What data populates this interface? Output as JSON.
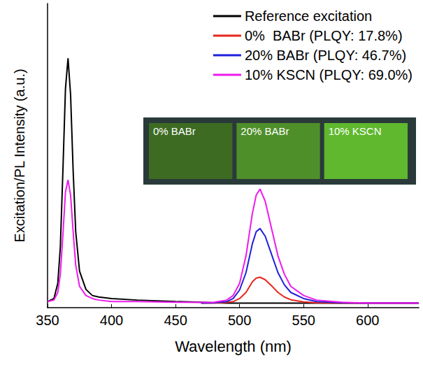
{
  "chart_data": {
    "type": "line",
    "xlabel": "Wavelength (nm)",
    "ylabel": "Excitation/PL Intensity (a.u.)",
    "x": [
      350,
      355,
      358,
      360,
      362,
      364,
      366,
      368,
      370,
      372,
      375,
      380,
      385,
      390,
      400,
      420,
      450,
      470,
      480,
      490,
      495,
      500,
      505,
      510,
      513,
      516,
      520,
      525,
      530,
      535,
      540,
      550,
      560,
      580,
      600,
      620,
      640
    ],
    "series": [
      {
        "name": "Reference excitation",
        "color": "#000000",
        "values": [
          0.02,
          0.03,
          0.08,
          0.2,
          0.45,
          0.72,
          0.82,
          0.7,
          0.45,
          0.25,
          0.12,
          0.06,
          0.04,
          0.035,
          0.03,
          0.025,
          0.02,
          0.018,
          0.016,
          0.015,
          0.015,
          0.015,
          0.015,
          0.015,
          0.015,
          0.015,
          0.015,
          0.015,
          0.015,
          0.015,
          0.015,
          0.015,
          0.015,
          0.015,
          0.015,
          0.015,
          0.015
        ]
      },
      {
        "name": "0%  BABr (PLQY: 17.8%)",
        "color": "#e8261c",
        "values": [
          null,
          null,
          null,
          null,
          null,
          null,
          null,
          null,
          null,
          null,
          null,
          null,
          null,
          null,
          null,
          null,
          null,
          0.015,
          0.015,
          0.017,
          0.02,
          0.03,
          0.05,
          0.085,
          0.097,
          0.1,
          0.092,
          0.072,
          0.05,
          0.035,
          0.026,
          0.019,
          0.016,
          0.015,
          0.015,
          0.015,
          0.015
        ]
      },
      {
        "name": "20% BABr (PLQY: 46.7%)",
        "color": "#1f1fdc",
        "values": [
          null,
          null,
          null,
          null,
          null,
          null,
          null,
          null,
          null,
          null,
          null,
          null,
          null,
          null,
          null,
          null,
          null,
          0.015,
          0.016,
          0.02,
          0.03,
          0.058,
          0.115,
          0.21,
          0.25,
          0.26,
          0.235,
          0.175,
          0.115,
          0.075,
          0.05,
          0.03,
          0.02,
          0.016,
          0.015,
          0.015,
          0.015
        ]
      },
      {
        "name": "10% KSCN (PLQY: 69.0%)",
        "color": "#ee1aee",
        "values": [
          0.02,
          0.025,
          0.05,
          0.11,
          0.24,
          0.38,
          0.42,
          0.37,
          0.25,
          0.14,
          0.07,
          0.04,
          0.03,
          0.025,
          0.02,
          0.02,
          0.018,
          0.017,
          0.018,
          0.025,
          0.04,
          0.08,
          0.17,
          0.31,
          0.37,
          0.39,
          0.35,
          0.26,
          0.17,
          0.11,
          0.07,
          0.04,
          0.025,
          0.018,
          0.015,
          0.015,
          0.015
        ]
      }
    ],
    "xlim": [
      350,
      640
    ],
    "xticks": [
      350,
      400,
      450,
      500,
      550,
      600
    ],
    "ylim": [
      0,
      1
    ],
    "tick_labels": "x",
    "legend": "upper right",
    "annotations": [
      "0% BABr",
      "20% BABr",
      "10% KSCN"
    ]
  }
}
